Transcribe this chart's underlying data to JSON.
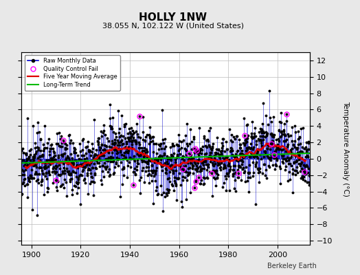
{
  "title": "HOLLY 1NW",
  "subtitle": "38.055 N, 102.122 W (United States)",
  "ylabel": "Temperature Anomaly (°C)",
  "watermark": "Berkeley Earth",
  "xlim": [
    1896,
    2013
  ],
  "ylim": [
    -10.5,
    13
  ],
  "yticks": [
    -10,
    -8,
    -6,
    -4,
    -2,
    0,
    2,
    4,
    6,
    8,
    10,
    12
  ],
  "xticks": [
    1900,
    1920,
    1940,
    1960,
    1980,
    2000
  ],
  "start_year": 1895,
  "end_year": 2013,
  "seed": 17,
  "bg_color": "#e8e8e8",
  "plot_bg_color": "#ffffff",
  "raw_line_color": "#0000cc",
  "raw_dot_color": "#000000",
  "ma_color": "#dd0000",
  "trend_color": "#00bb00",
  "qc_color": "#ff00ff",
  "title_fontsize": 11,
  "subtitle_fontsize": 8,
  "label_fontsize": 7.5,
  "tick_fontsize": 8,
  "ma_window": 60,
  "noise_std": 1.8,
  "n_qc": 18
}
